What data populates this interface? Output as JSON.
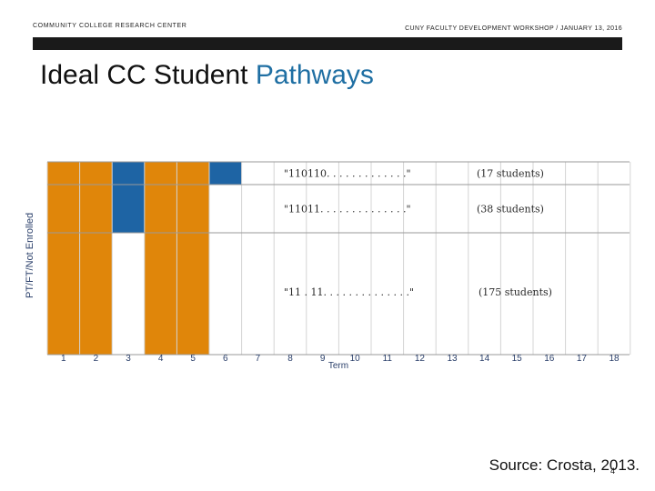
{
  "header": {
    "left": "COMMUNITY COLLEGE RESEARCH CENTER",
    "right": "CUNY FACULTY DEVELOPMENT WORKSHOP / JANUARY 13, 2016"
  },
  "slide": {
    "title_plain": "Ideal CC Student",
    "title_accent": "Pathways",
    "source": "Source: Crosta, 2013.",
    "page_number": "4"
  },
  "colors": {
    "orange": "#e0860a",
    "blue": "#1e64a4",
    "accent": "#1f6fa3"
  },
  "chart_data": {
    "type": "heatmap",
    "xlabel": "Term",
    "ylabel": "PT/FT/Not Enrolled",
    "x": [
      1,
      2,
      3,
      4,
      5,
      6,
      7,
      8,
      9,
      10,
      11,
      12,
      13,
      14,
      15,
      16,
      17,
      18
    ],
    "rows": [
      {
        "pattern": "\"110110. . . . . . . . . . . . .\"",
        "count": "(17 students)",
        "cells": [
          2,
          2,
          1,
          2,
          2,
          1
        ]
      },
      {
        "pattern": "\"11011. . . . . . . . . . . . . .\"",
        "count": "(38 students)",
        "cells": [
          2,
          2,
          1,
          2,
          2
        ]
      },
      {
        "pattern": "\"11 . 11. . . . . . . . . . . . . .\"",
        "count": "(175 students)",
        "cells": [
          2,
          2,
          0,
          2,
          2
        ]
      }
    ],
    "legend_codes": {
      "0": "Not Enrolled",
      "1": "PT",
      "2": "FT"
    }
  }
}
